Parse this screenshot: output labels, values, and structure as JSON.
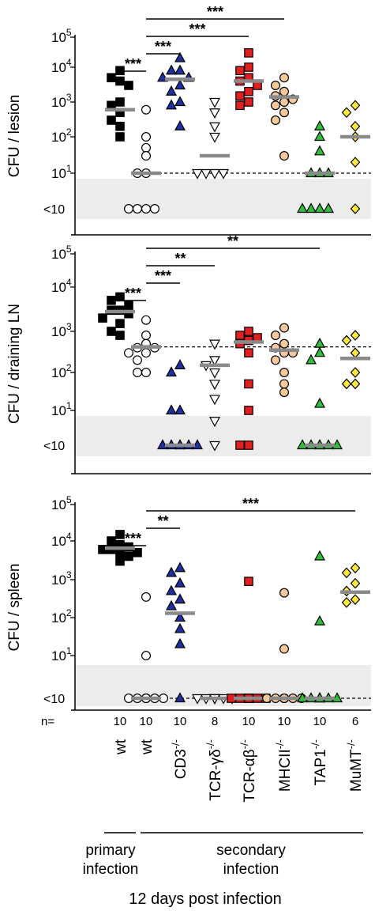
{
  "chart_data": [
    {
      "type": "scatter",
      "panel": "lesion",
      "ylabel": "CFU / lesion",
      "yscale": "log",
      "ylim": [
        1,
        100000
      ],
      "ytick_labels": [
        "10^5",
        "10^4",
        "10^3",
        "10^2",
        "10^1",
        "<10"
      ],
      "detection_limit": 10,
      "dashed_line_at": 10,
      "groups": [
        {
          "points": [
            8000,
            5000,
            4000,
            3000,
            1000,
            800,
            500,
            300,
            200,
            100
          ],
          "median": 600
        },
        {
          "points": [
            600,
            100,
            50,
            30,
            10,
            10,
            1,
            1,
            1,
            1
          ],
          "median": 10
        },
        {
          "points": [
            20000,
            8000,
            8000,
            5000,
            5000,
            3000,
            2000,
            1000,
            800,
            200
          ],
          "median": 4500
        },
        {
          "points": [
            1000,
            500,
            200,
            100,
            10,
            10,
            10,
            10
          ],
          "median": 30
        },
        {
          "points": [
            30000,
            10000,
            8000,
            5000,
            4000,
            3000,
            2000,
            1500,
            1000,
            800
          ],
          "median": 4000
        },
        {
          "points": [
            5000,
            3000,
            2000,
            1500,
            1200,
            1000,
            800,
            500,
            300,
            30
          ],
          "median": 1400
        },
        {
          "points": [
            200,
            100,
            40,
            10,
            10,
            10,
            1,
            1,
            1,
            1
          ],
          "median": 10
        },
        {
          "points": [
            800,
            500,
            200,
            100,
            20,
            1
          ],
          "median": 100
        }
      ],
      "significance": [
        {
          "from": 0,
          "to": 1,
          "label": "***"
        },
        {
          "from": 1,
          "to": 2,
          "label": "***"
        },
        {
          "from": 1,
          "to": 4,
          "label": "***"
        },
        {
          "from": 1,
          "to": 5,
          "label": "***"
        }
      ]
    },
    {
      "type": "scatter",
      "panel": "draining LN",
      "ylabel": "CFU / draining LN",
      "yscale": "log",
      "ylim": [
        1,
        100000
      ],
      "ytick_labels": [
        "10^5",
        "10^4",
        "10^3",
        "10^2",
        "10^1",
        "<10"
      ],
      "detection_limit": 10,
      "dashed_line_at": 420,
      "groups": [
        {
          "points": [
            6000,
            5000,
            4000,
            3000,
            3000,
            2500,
            2000,
            1500,
            1000,
            800
          ],
          "median": 2800
        },
        {
          "points": [
            1800,
            800,
            500,
            400,
            400,
            300,
            300,
            200,
            100,
            100
          ],
          "median": 420
        },
        {
          "points": [
            150,
            100,
            10,
            10,
            1,
            1,
            1,
            1,
            1,
            1
          ],
          "median": 1
        },
        {
          "points": [
            500,
            200,
            150,
            100,
            50,
            20,
            5,
            1
          ],
          "median": 150
        },
        {
          "points": [
            1000,
            800,
            700,
            600,
            500,
            300,
            50,
            10,
            1,
            1
          ],
          "median": 550
        },
        {
          "points": [
            1200,
            800,
            500,
            400,
            300,
            300,
            200,
            100,
            50,
            30
          ],
          "median": 350
        },
        {
          "points": [
            500,
            300,
            200,
            15,
            1,
            1,
            1,
            1,
            1,
            1
          ],
          "median": 1
        },
        {
          "points": [
            800,
            600,
            300,
            100,
            50,
            50
          ],
          "median": 220
        }
      ],
      "significance": [
        {
          "from": 0,
          "to": 1,
          "label": "***"
        },
        {
          "from": 1,
          "to": 2,
          "label": "***"
        },
        {
          "from": 1,
          "to": 3,
          "label": "**"
        },
        {
          "from": 1,
          "to": 6,
          "label": "**"
        }
      ]
    },
    {
      "type": "scatter",
      "panel": "spleen",
      "ylabel": "CFU / spleen",
      "yscale": "log",
      "ylim": [
        1,
        100000
      ],
      "ytick_labels": [
        "10^5",
        "10^4",
        "10^3",
        "10^2",
        "10^1",
        "<10"
      ],
      "detection_limit": 10,
      "dashed_line_at": 1,
      "groups": [
        {
          "points": [
            15000,
            10000,
            8000,
            7000,
            6000,
            6000,
            5000,
            5000,
            4000,
            3000
          ],
          "median": 6500
        },
        {
          "points": [
            350,
            10,
            1,
            1,
            1,
            1,
            1,
            1,
            1,
            1
          ],
          "median": 1
        },
        {
          "points": [
            2000,
            1500,
            800,
            500,
            300,
            200,
            100,
            50,
            20,
            1
          ],
          "median": 130
        },
        {
          "points": [
            1,
            1,
            1,
            1,
            1,
            1,
            1,
            1
          ],
          "median": 1
        },
        {
          "points": [
            900,
            1,
            1,
            1,
            1,
            1,
            1,
            1,
            1,
            1
          ],
          "median": 1
        },
        {
          "points": [
            450,
            15,
            1,
            1,
            1,
            1,
            1,
            1,
            1,
            1
          ],
          "median": 1
        },
        {
          "points": [
            4000,
            80,
            1,
            1,
            1,
            1,
            1,
            1,
            1,
            1
          ],
          "median": 1
        },
        {
          "points": [
            2000,
            1500,
            800,
            500,
            300,
            250
          ],
          "median": 470
        }
      ],
      "significance": [
        {
          "from": 0,
          "to": 1,
          "label": "***"
        },
        {
          "from": 1,
          "to": 2,
          "label": "**"
        },
        {
          "from": 1,
          "to": 7,
          "label": "***"
        }
      ]
    }
  ],
  "groups": [
    {
      "label": "wt",
      "sup": "",
      "marker": "square",
      "color": "#000000",
      "n": "10"
    },
    {
      "label": "wt",
      "sup": "",
      "marker": "circle",
      "color": "#ffffff",
      "n": "10"
    },
    {
      "label": "CD3",
      "sup": "-/-",
      "marker": "triangle-up",
      "color": "#1f2fa0",
      "n": "10"
    },
    {
      "label": "TCR-γδ",
      "sup": "-/-",
      "marker": "triangle-down",
      "color": "#ffffff",
      "n": "8"
    },
    {
      "label": "TCR-αβ",
      "sup": "-/-",
      "marker": "square",
      "color": "#e02020",
      "n": "10"
    },
    {
      "label": "MHCII",
      "sup": "-/-",
      "marker": "circle",
      "color": "#f7c89a",
      "n": "10"
    },
    {
      "label": "TAP1",
      "sup": "-/-",
      "marker": "triangle-up",
      "color": "#2fbf3a",
      "n": "10"
    },
    {
      "label": "MuMT",
      "sup": "-/-",
      "marker": "diamond",
      "color": "#ffe83a",
      "n": "6"
    }
  ],
  "n_label": "n=",
  "footer": {
    "primary": [
      "primary",
      "infection"
    ],
    "secondary": [
      "secondary",
      "infection"
    ],
    "caption": "12 days post infection"
  },
  "colors": {
    "median_bar": "#8a8a8a",
    "shade": "#ececec"
  }
}
